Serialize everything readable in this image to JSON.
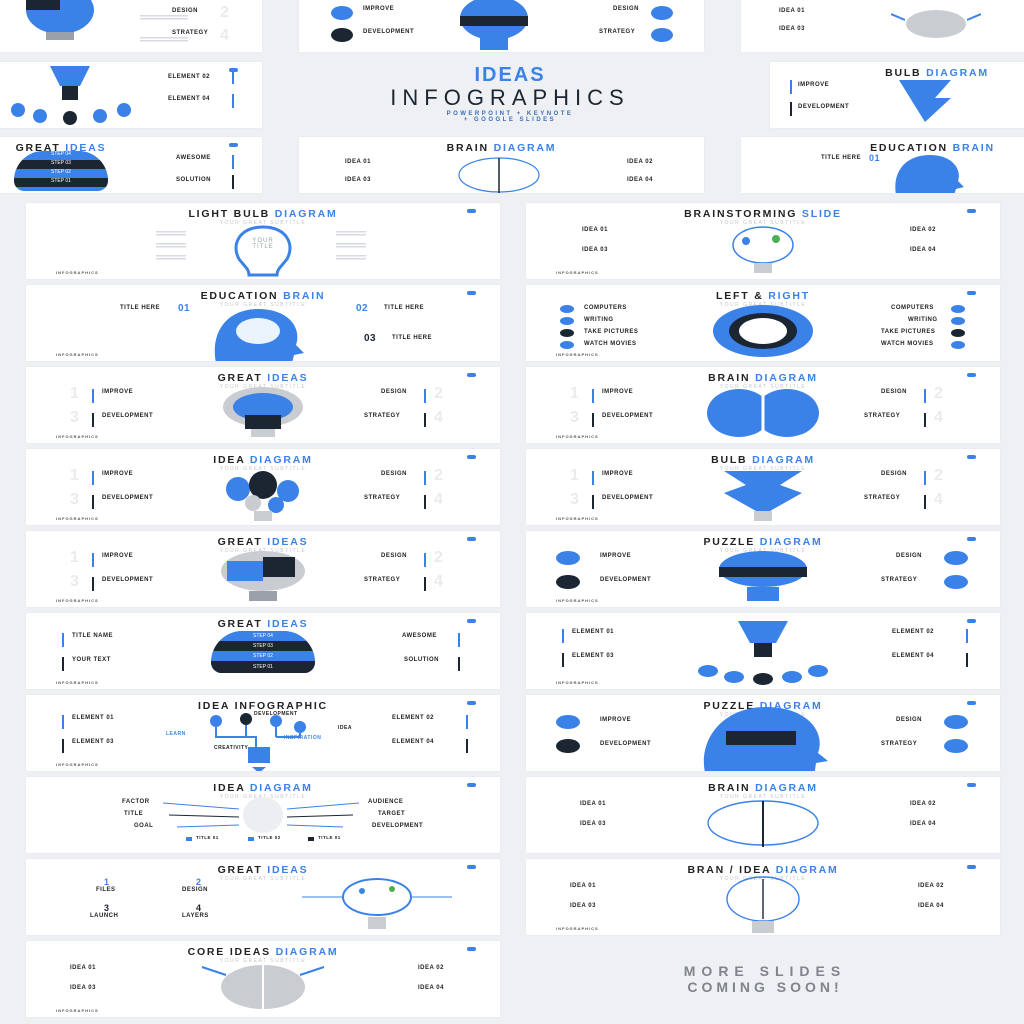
{
  "hero": {
    "title1": "IDEAS",
    "title2": "INFOGRAPHICS",
    "title3": "POWERPOINT + KEYNOTE",
    "title4": "+ GOOGLE SLIDES"
  },
  "coming": {
    "line1": "MORE SLIDES",
    "line2": "COMING SOON!"
  },
  "common": {
    "subtitle": "YOUR GREAT SUBTITLE",
    "footer": "INFOGRAPHICS"
  },
  "colors": {
    "accent": "#3b82e8",
    "dark": "#1c2633",
    "light": "#ffffff"
  },
  "top_strip": {
    "s1": {
      "l1": "DESIGN",
      "l2": "STRATEGY"
    },
    "s2": {
      "l1": "IMPROVE",
      "l2": "DEVELOPMENT",
      "r1": "DESIGN",
      "r2": "STRATEGY",
      "step": "STEP"
    },
    "s3": {
      "l1": "IDEA 01",
      "l2": "IDEA 03"
    },
    "s4": {
      "l1": "ELEMENT 02",
      "l2": "ELEMENT 04"
    },
    "s5": {
      "title_dark": "BULB",
      "title_blue": "DIAGRAM",
      "l1": "IMPROVE",
      "l2": "DEVELOPMENT"
    },
    "s6": {
      "title_dark": "GREAT",
      "title_blue": "IDEAS",
      "l1": "AWESOME",
      "l2": "SOLUTION",
      "steps": [
        "STEP 04",
        "STEP 03",
        "STEP 02",
        "STEP 01"
      ]
    },
    "s7": {
      "title_dark": "BRAIN",
      "title_blue": "DIAGRAM",
      "l1": "IDEA 01",
      "l2": "IDEA 03",
      "r1": "IDEA 02",
      "r2": "IDEA 04"
    },
    "s8": {
      "title_dark": "EDUCATION",
      "title_blue": "BRAIN",
      "l1": "TITLE HERE",
      "n1": "01"
    }
  },
  "slides": [
    {
      "id": "light-bulb",
      "title_dark": "LIGHT BULB",
      "title_blue": "DIAGRAM",
      "center": "YOUR TITLE"
    },
    {
      "id": "brainstorming",
      "title_dark": "BRAINSTORMING",
      "title_blue": "SLIDE",
      "l1": "IDEA 01",
      "l2": "IDEA 03",
      "r1": "IDEA 02",
      "r2": "IDEA 04"
    },
    {
      "id": "education-brain",
      "title_dark": "EDUCATION",
      "title_blue": "BRAIN",
      "n1": "01",
      "n2": "02",
      "n3": "03",
      "l1": "TITLE HERE",
      "r1": "TITLE HERE",
      "r2": "TITLE HERE"
    },
    {
      "id": "left-right",
      "title_dark": "LEFT &",
      "title_blue": "RIGHT",
      "l1": "COMPUTERS",
      "l2": "WRITING",
      "l3": "TAKE PICTURES",
      "l4": "WATCH MOVIES",
      "r1": "COMPUTERS",
      "r2": "WRITING",
      "r3": "TAKE PICTURES",
      "r4": "WATCH MOVIES"
    },
    {
      "id": "great-ideas-1",
      "title_dark": "GREAT",
      "title_blue": "IDEAS",
      "l1": "IMPROVE",
      "l2": "DEVELOPMENT",
      "r1": "DESIGN",
      "r2": "STRATEGY"
    },
    {
      "id": "brain-diagram-1",
      "title_dark": "BRAIN",
      "title_blue": "DIAGRAM",
      "l1": "IMPROVE",
      "l2": "DEVELOPMENT",
      "r1": "DESIGN",
      "r2": "STRATEGY"
    },
    {
      "id": "idea-diagram-1",
      "title_dark": "IDEA",
      "title_blue": "DIAGRAM",
      "l1": "IMPROVE",
      "l2": "DEVELOPMENT",
      "r1": "DESIGN",
      "r2": "STRATEGY"
    },
    {
      "id": "bulb-diagram",
      "title_dark": "BULB",
      "title_blue": "DIAGRAM",
      "l1": "IMPROVE",
      "l2": "DEVELOPMENT",
      "r1": "DESIGN",
      "r2": "STRATEGY"
    },
    {
      "id": "great-ideas-2",
      "title_dark": "GREAT",
      "title_blue": "IDEAS",
      "l1": "IMPROVE",
      "l2": "DEVELOPMENT",
      "r1": "DESIGN",
      "r2": "STRATEGY"
    },
    {
      "id": "puzzle-1",
      "title_dark": "PUZZLE",
      "title_blue": "DIAGRAM",
      "l1": "IMPROVE",
      "l2": "DEVELOPMENT",
      "r1": "DESIGN",
      "r2": "STRATEGY"
    },
    {
      "id": "great-ideas-3",
      "title_dark": "GREAT",
      "title_blue": "IDEAS",
      "l1": "TITLE NAME",
      "l2": "YOUR TEXT",
      "r1": "AWESOME",
      "r2": "SOLUTION",
      "steps": [
        "STEP 04",
        "STEP 03",
        "STEP 02",
        "STEP 01"
      ]
    },
    {
      "id": "elements",
      "title_dark": "",
      "title_blue": "",
      "l1": "ELEMENT 01",
      "l2": "ELEMENT 03",
      "r1": "ELEMENT 02",
      "r2": "ELEMENT 04"
    },
    {
      "id": "idea-infographic",
      "title_dark": "IDEA INFOGRAPHIC",
      "title_blue": "",
      "l1": "ELEMENT 01",
      "l2": "ELEMENT 03",
      "r1": "ELEMENT 02",
      "r2": "ELEMENT 04",
      "c1": "DEVELOPMENT",
      "c2": "LEARN",
      "c3": "CREATIVITY",
      "c4": "INSPIRATION",
      "c5": "IDEA"
    },
    {
      "id": "puzzle-2",
      "title_dark": "PUZZLE",
      "title_blue": "DIAGRAM",
      "l1": "IMPROVE",
      "l2": "DEVELOPMENT",
      "r1": "DESIGN",
      "r2": "STRATEGY"
    },
    {
      "id": "idea-diagram-2",
      "title_dark": "IDEA",
      "title_blue": "DIAGRAM",
      "l1": "FACTOR",
      "l2": "TITLE",
      "l3": "GOAL",
      "r1": "AUDIENCE",
      "r2": "TARGET",
      "r3": "DEVELOPMENT",
      "k1": "TITLE 01",
      "k2": "TITLE 02",
      "k3": "TITLE 01"
    },
    {
      "id": "brain-diagram-2",
      "title_dark": "BRAIN",
      "title_blue": "DIAGRAM",
      "l1": "IDEA 01",
      "l2": "IDEA 03",
      "r1": "IDEA 02",
      "r2": "IDEA 04"
    },
    {
      "id": "great-ideas-4",
      "title_dark": "GREAT",
      "title_blue": "IDEAS",
      "n1": "1",
      "n2": "2",
      "n3": "3",
      "n4": "4",
      "l1": "FILES",
      "l2": "DESIGN",
      "l3": "LAUNCH",
      "l4": "LAYERS"
    },
    {
      "id": "bran-idea",
      "title_dark": "BRAN / IDEA",
      "title_blue": "DIAGRAM",
      "l1": "IDEA 01",
      "l2": "IDEA 03",
      "r1": "IDEA 02",
      "r2": "IDEA 04"
    },
    {
      "id": "core-ideas",
      "title_dark": "CORE IDEAS",
      "title_blue": "DIAGRAM",
      "l1": "IDEA 01",
      "l2": "IDEA 03",
      "r1": "IDEA 02",
      "r2": "IDEA 04"
    }
  ]
}
